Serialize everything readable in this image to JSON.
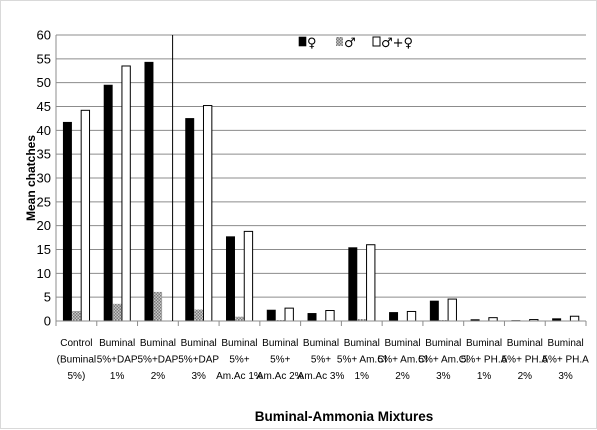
{
  "chart_data": {
    "type": "bar",
    "title": "",
    "xlabel": "Buminal-Ammonia Mixtures",
    "ylabel": "Mean chatches",
    "ylim": [
      0,
      60
    ],
    "yticks": [
      0,
      5,
      10,
      15,
      20,
      25,
      30,
      35,
      40,
      45,
      50,
      55,
      60
    ],
    "grid": "horizontal",
    "legend_position": "top-right",
    "categories": [
      [
        "Control",
        "(Buminal",
        "5%)"
      ],
      [
        "Buminal",
        "5%+DAP",
        "1%"
      ],
      [
        "Buminal",
        "5%+DAP",
        "2%"
      ],
      [
        "Buminal",
        "5%+DAP",
        "3%"
      ],
      [
        "Buminal",
        "5%+",
        "Am.Ac 1%"
      ],
      [
        "Buminal",
        "5%+",
        "Am.Ac 2%"
      ],
      [
        "Buminal",
        "5%+",
        "Am.Ac 3%"
      ],
      [
        "Buminal",
        "5%+ Am.Cl",
        "1%"
      ],
      [
        "Buminal",
        "5%+ Am.Cl",
        "2%"
      ],
      [
        "Buminal",
        "5%+ Am.Cl",
        "3%"
      ],
      [
        "Buminal",
        "5%+ PH.A",
        "1%"
      ],
      [
        "Buminal",
        "5%+ PH.A",
        "2%"
      ],
      [
        "Buminal",
        "5%+ PH.A",
        "3%"
      ]
    ],
    "series": [
      {
        "name": "♀",
        "color": "#000000",
        "style": "solid",
        "values": [
          41.7,
          49.5,
          54.3,
          42.5,
          17.7,
          2.3,
          1.6,
          15.4,
          1.8,
          4.2,
          0.3,
          0.1,
          0.5
        ]
      },
      {
        "name": "♂",
        "color": "#a6a6a6",
        "style": "hatched",
        "values": [
          2.1,
          3.6,
          6.1,
          2.4,
          0.9,
          0.2,
          0.1,
          0.4,
          0.1,
          0.2,
          0.0,
          0.0,
          0.1
        ]
      },
      {
        "name": "♂+♀",
        "color": "#ffffff",
        "style": "outline",
        "values": [
          44.2,
          53.5,
          0,
          45.2,
          18.8,
          2.7,
          2.2,
          16.0,
          2.0,
          4.6,
          0.7,
          0.3,
          1.0
        ]
      }
    ]
  }
}
